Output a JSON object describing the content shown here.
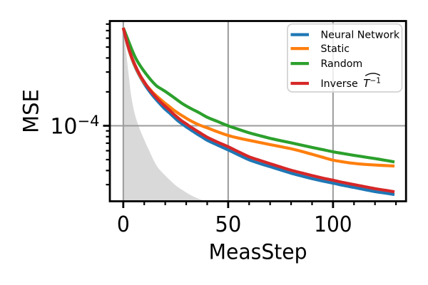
{
  "chart_data": {
    "type": "line",
    "title": "",
    "xlabel": "MeasStep",
    "ylabel": "MSE",
    "x_scale": "linear",
    "y_scale": "log",
    "xlim": [
      -6.4,
      134.8
    ],
    "ylim": [
      2.133e-05,
      0.0008518
    ],
    "grid": true,
    "x_major_ticks": [
      0,
      50,
      100
    ],
    "x_major_tick_labels": [
      "0",
      "50",
      "100"
    ],
    "x_minor_ticks": [
      10,
      20,
      30,
      40,
      60,
      70,
      80,
      90,
      110,
      120,
      130
    ],
    "y_major_ticks": [
      0.0001
    ],
    "y_major_tick_label": {
      "mantissa": "10",
      "exponent": "−4"
    },
    "y_minor_ticks": [
      3e-05,
      4e-05,
      5e-05,
      6e-05,
      7e-05,
      8e-05,
      9e-05,
      0.0002,
      0.0003,
      0.0004,
      0.0005,
      0.0006,
      0.0007,
      0.0008
    ],
    "colors": {
      "blue": "#1f77b4",
      "orange": "#ff7f0e",
      "green": "#2ca02c",
      "red": "#d62728",
      "grid": "#9b9b9b",
      "spine": "#000000",
      "band_fill": "#d9d9d9",
      "legend_edge": "#d3d3d3",
      "legend_face": "#ffffff"
    },
    "shaded_band": {
      "name": "lower-bound region",
      "points": [
        [
          0,
          0.000742
        ],
        [
          0.9,
          0.00053
        ],
        [
          1.8,
          0.000379
        ],
        [
          2.8,
          0.00026
        ],
        [
          3.8,
          0.000183
        ],
        [
          5.5,
          0.000127
        ],
        [
          7.7,
          9.5e-05
        ],
        [
          9.9,
          7.58e-05
        ],
        [
          12.1,
          6.14e-05
        ],
        [
          15.7,
          4.48e-05
        ],
        [
          18.8,
          3.81e-05
        ],
        [
          22,
          3.32e-05
        ],
        [
          25.2,
          2.93e-05
        ],
        [
          28.4,
          2.67e-05
        ],
        [
          31.6,
          2.45e-05
        ],
        [
          34.8,
          2.29e-05
        ],
        [
          38,
          2.18e-05
        ],
        [
          41,
          2.13e-05
        ]
      ]
    },
    "series": [
      {
        "name": "Neural Network",
        "color_key": "blue",
        "points": [
          [
            0,
            0.000742
          ],
          [
            2,
            0.000523
          ],
          [
            4,
            0.000399
          ],
          [
            6,
            0.000323
          ],
          [
            8,
            0.000273
          ],
          [
            10,
            0.000236
          ],
          [
            12,
            0.000208
          ],
          [
            14,
            0.000186
          ],
          [
            16,
            0.000168
          ],
          [
            18,
            0.000153
          ],
          [
            19.8,
            0.000141
          ],
          [
            22,
            0.00013
          ],
          [
            24,
            0.00012
          ],
          [
            26,
            0.000111
          ],
          [
            28,
            0.000104
          ],
          [
            30,
            9.78e-05
          ],
          [
            32,
            9.23e-05
          ],
          [
            34,
            8.73e-05
          ],
          [
            36,
            8.26e-05
          ],
          [
            38,
            7.84e-05
          ],
          [
            40,
            7.43e-05
          ],
          [
            45,
            6.72e-05
          ],
          [
            50,
            6.1e-05
          ],
          [
            55,
            5.5e-05
          ],
          [
            60,
            4.98e-05
          ],
          [
            65,
            4.63e-05
          ],
          [
            70,
            4.33e-05
          ],
          [
            75,
            4.05e-05
          ],
          [
            80,
            3.79e-05
          ],
          [
            85,
            3.58e-05
          ],
          [
            90,
            3.39e-05
          ],
          [
            95,
            3.23e-05
          ],
          [
            100,
            3.09e-05
          ],
          [
            105,
            2.95e-05
          ],
          [
            110,
            2.83e-05
          ],
          [
            115,
            2.71e-05
          ],
          [
            120,
            2.6e-05
          ],
          [
            125,
            2.52e-05
          ],
          [
            129.3,
            2.45e-05
          ]
        ]
      },
      {
        "name": "Static",
        "color_key": "orange",
        "points": [
          [
            0,
            0.000742
          ],
          [
            2,
            0.000527
          ],
          [
            4,
            0.000402
          ],
          [
            6,
            0.000328
          ],
          [
            8,
            0.000277
          ],
          [
            10,
            0.000241
          ],
          [
            12,
            0.000218
          ],
          [
            14,
            0.000198
          ],
          [
            16,
            0.000183
          ],
          [
            18,
            0.00017
          ],
          [
            19.8,
            0.000159
          ],
          [
            22,
            0.000148
          ],
          [
            24,
            0.000138
          ],
          [
            26,
            0.00013
          ],
          [
            28,
            0.000123
          ],
          [
            32,
            0.000111
          ],
          [
            36,
            0.000102
          ],
          [
            40,
            9.59e-05
          ],
          [
            45,
            8.83e-05
          ],
          [
            50,
            8.2e-05
          ],
          [
            55,
            7.77e-05
          ],
          [
            60,
            7.42e-05
          ],
          [
            65,
            7.1e-05
          ],
          [
            70,
            6.8e-05
          ],
          [
            75,
            6.52e-05
          ],
          [
            80,
            6.25e-05
          ],
          [
            85,
            5.92e-05
          ],
          [
            90,
            5.58e-05
          ],
          [
            95,
            5.25e-05
          ],
          [
            100,
            4.95e-05
          ],
          [
            105,
            4.77e-05
          ],
          [
            110,
            4.63e-05
          ],
          [
            115,
            4.54e-05
          ],
          [
            120,
            4.48e-05
          ],
          [
            125,
            4.43e-05
          ],
          [
            129.3,
            4.39e-05
          ]
        ]
      },
      {
        "name": "Random",
        "color_key": "green",
        "points": [
          [
            0,
            0.000742
          ],
          [
            2,
            0.000596
          ],
          [
            4,
            0.000479
          ],
          [
            6,
            0.000396
          ],
          [
            8,
            0.000343
          ],
          [
            10,
            0.000303
          ],
          [
            12,
            0.000271
          ],
          [
            14,
            0.000245
          ],
          [
            16,
            0.000225
          ],
          [
            18,
            0.000213
          ],
          [
            20,
            0.000202
          ],
          [
            24,
            0.000179
          ],
          [
            28,
            0.000158
          ],
          [
            32,
            0.000143
          ],
          [
            36,
            0.000131
          ],
          [
            40,
            0.000119
          ],
          [
            45,
            0.000109
          ],
          [
            50,
            9.99e-05
          ],
          [
            55,
            9.28e-05
          ],
          [
            60,
            8.66e-05
          ],
          [
            65,
            8.17e-05
          ],
          [
            70,
            7.73e-05
          ],
          [
            75,
            7.37e-05
          ],
          [
            80,
            7.05e-05
          ],
          [
            85,
            6.73e-05
          ],
          [
            90,
            6.42e-05
          ],
          [
            95,
            6.14e-05
          ],
          [
            100,
            5.87e-05
          ],
          [
            105,
            5.66e-05
          ],
          [
            110,
            5.46e-05
          ],
          [
            115,
            5.28e-05
          ],
          [
            120,
            5.11e-05
          ],
          [
            125,
            4.93e-05
          ],
          [
            129.3,
            4.77e-05
          ]
        ]
      },
      {
        "name": "Inverse T̂⁻¹",
        "color_key": "red",
        "points": [
          [
            0,
            0.000742
          ],
          [
            2,
            0.00053
          ],
          [
            4,
            0.000408
          ],
          [
            6,
            0.000333
          ],
          [
            8,
            0.000281
          ],
          [
            10,
            0.000245
          ],
          [
            12,
            0.000216
          ],
          [
            14,
            0.000194
          ],
          [
            16,
            0.000176
          ],
          [
            18,
            0.000161
          ],
          [
            19.8,
            0.00015
          ],
          [
            22,
            0.000138
          ],
          [
            24,
            0.000127
          ],
          [
            26,
            0.000118
          ],
          [
            28,
            0.00011
          ],
          [
            30,
            0.000104
          ],
          [
            32,
            9.78e-05
          ],
          [
            34,
            9.27e-05
          ],
          [
            36,
            8.78e-05
          ],
          [
            38,
            8.33e-05
          ],
          [
            40,
            7.91e-05
          ],
          [
            45,
            7.15e-05
          ],
          [
            50,
            6.51e-05
          ],
          [
            55,
            5.86e-05
          ],
          [
            60,
            5.3e-05
          ],
          [
            65,
            4.93e-05
          ],
          [
            70,
            4.6e-05
          ],
          [
            75,
            4.3e-05
          ],
          [
            80,
            4.03e-05
          ],
          [
            85,
            3.81e-05
          ],
          [
            90,
            3.61e-05
          ],
          [
            95,
            3.43e-05
          ],
          [
            100,
            3.28e-05
          ],
          [
            105,
            3.13e-05
          ],
          [
            110,
            3e-05
          ],
          [
            115,
            2.88e-05
          ],
          [
            120,
            2.76e-05
          ],
          [
            125,
            2.67e-05
          ],
          [
            129.3,
            2.59e-05
          ]
        ]
      }
    ],
    "legend": {
      "position": "upper right",
      "entries": [
        {
          "label": "Neural Network",
          "color_key": "blue",
          "math": false
        },
        {
          "label": "Static",
          "color_key": "orange",
          "math": false
        },
        {
          "label": "Random",
          "color_key": "green",
          "math": false
        },
        {
          "label": "Inverse ",
          "color_key": "red",
          "math": true,
          "math_symbol": "T",
          "math_sup": "−1",
          "math_hat": true
        }
      ]
    }
  }
}
